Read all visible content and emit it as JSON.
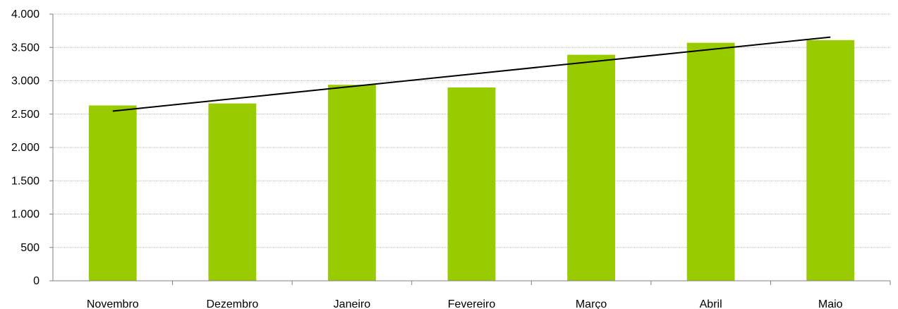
{
  "chart_data": {
    "type": "bar",
    "categories": [
      "Novembro",
      "Dezembro",
      "Janeiro",
      "Fevereiro",
      "Março",
      "Abril",
      "Maio"
    ],
    "values": [
      2630,
      2660,
      2940,
      2900,
      3390,
      3570,
      3610
    ],
    "trendline": {
      "type": "linear",
      "start": 2545,
      "end": 3655
    },
    "ylim": [
      0,
      4000
    ],
    "yticks": [
      0,
      500,
      1000,
      1500,
      2000,
      2500,
      3000,
      3500,
      4000
    ],
    "ytick_labels": [
      "0",
      "500",
      "1.000",
      "1.500",
      "2.000",
      "2.500",
      "3.000",
      "3.500",
      "4.000"
    ],
    "grid": true,
    "legend": "none",
    "colors": {
      "bar": "#99cc00",
      "trend": "#000000"
    }
  }
}
